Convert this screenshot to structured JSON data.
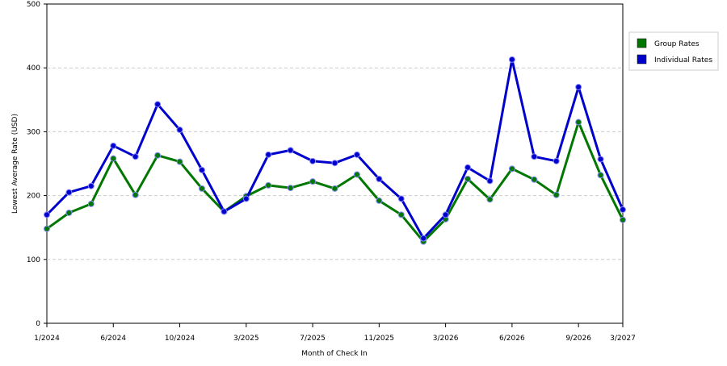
{
  "chart_data": {
    "type": "line",
    "title": "",
    "xlabel": "Month of Check In",
    "ylabel": "Lowest Average Rate (USD)",
    "ylim": [
      0,
      500
    ],
    "yticks": [
      0,
      100,
      200,
      300,
      400,
      500
    ],
    "grid": true,
    "legend_position": "right",
    "x": [
      "1/2024",
      "2/2024",
      "4/2024",
      "6/2024",
      "7/2024",
      "8/2024",
      "10/2024",
      "11/2024",
      "1/2025",
      "3/2025",
      "4/2025",
      "5/2025",
      "7/2025",
      "8/2025",
      "9/2025",
      "11/2025",
      "12/2025",
      "1/2026",
      "3/2026",
      "4/2026",
      "5/2026",
      "6/2026",
      "7/2026",
      "8/2026",
      "9/2026",
      "10/2026",
      "3/2027"
    ],
    "xtick_labels": [
      {
        "index": 0,
        "label": "1/2024"
      },
      {
        "index": 3,
        "label": "6/2024"
      },
      {
        "index": 6,
        "label": "10/2024"
      },
      {
        "index": 9,
        "label": "3/2025"
      },
      {
        "index": 12,
        "label": "7/2025"
      },
      {
        "index": 15,
        "label": "11/2025"
      },
      {
        "index": 18,
        "label": "3/2026"
      },
      {
        "index": 21,
        "label": "6/2026"
      },
      {
        "index": 24,
        "label": "9/2026"
      },
      {
        "index": 26,
        "label": "3/2027"
      }
    ],
    "series": [
      {
        "name": "Group Rates",
        "color": "#007700",
        "values": [
          148,
          173,
          187,
          258,
          201,
          263,
          253,
          211,
          175,
          199,
          216,
          212,
          222,
          211,
          233,
          192,
          170,
          128,
          163,
          226,
          194,
          242,
          225,
          201,
          315,
          232,
          162
        ]
      },
      {
        "name": "Individual Rates",
        "color": "#0000cc",
        "values": [
          170,
          205,
          215,
          278,
          261,
          343,
          303,
          240,
          175,
          195,
          264,
          271,
          254,
          251,
          264,
          226,
          195,
          133,
          170,
          244,
          223,
          413,
          261,
          254,
          370,
          257,
          178
        ]
      }
    ]
  }
}
